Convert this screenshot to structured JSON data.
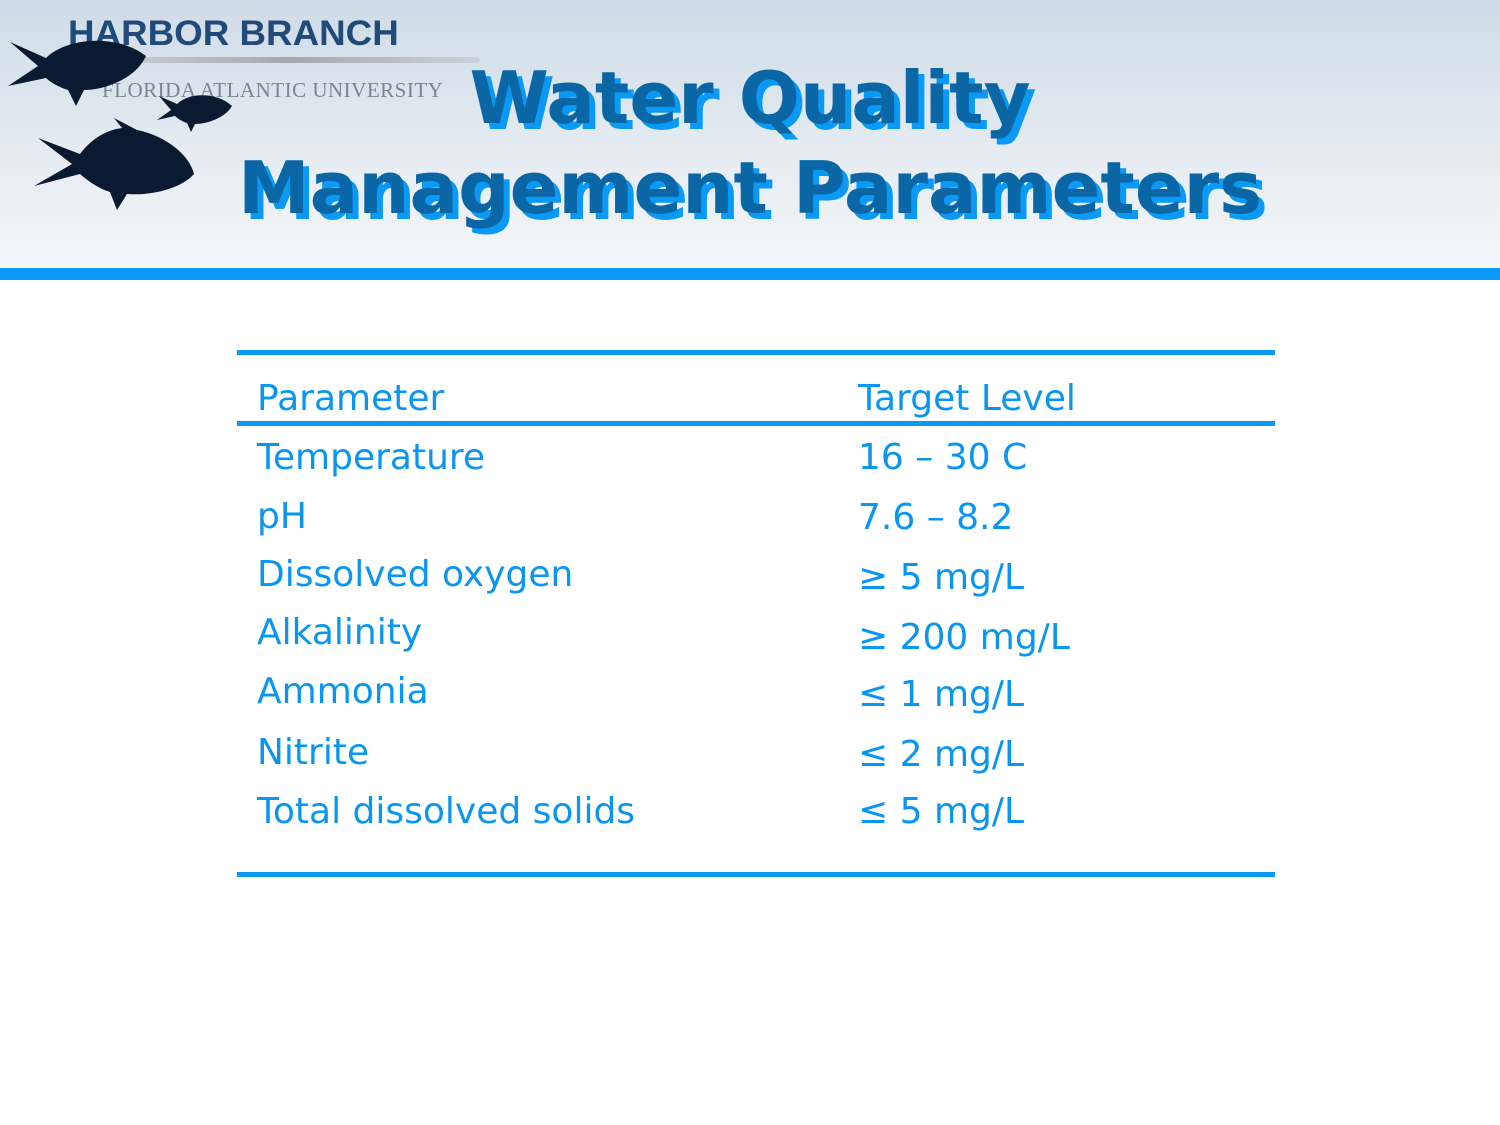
{
  "header": {
    "logo": {
      "name": "HARBOR BRANCH",
      "subtitle": "FLORIDA ATLANTIC UNIVERSITY"
    },
    "title_line1": "Water Quality",
    "title_line2": "Management Parameters",
    "colors": {
      "title": "#0b66a6",
      "title_shadow": "#0a9af5",
      "bar": "#0a9af5"
    }
  },
  "table": {
    "headers": [
      "Parameter",
      "Target Level"
    ],
    "rows": [
      [
        "Temperature",
        "16 – 30 C"
      ],
      [
        "pH",
        "7.6 – 8.2"
      ],
      [
        "Dissolved oxygen",
        "≥ 5 mg/L"
      ],
      [
        "Alkalinity",
        "≥ 200 mg/L"
      ],
      [
        "Ammonia",
        "≤ 1 mg/L"
      ],
      [
        "Nitrite",
        "≤ 2 mg/L"
      ],
      [
        "Total dissolved solids",
        "≤ 5 mg/L"
      ]
    ],
    "text_color": "#0a96f0"
  }
}
